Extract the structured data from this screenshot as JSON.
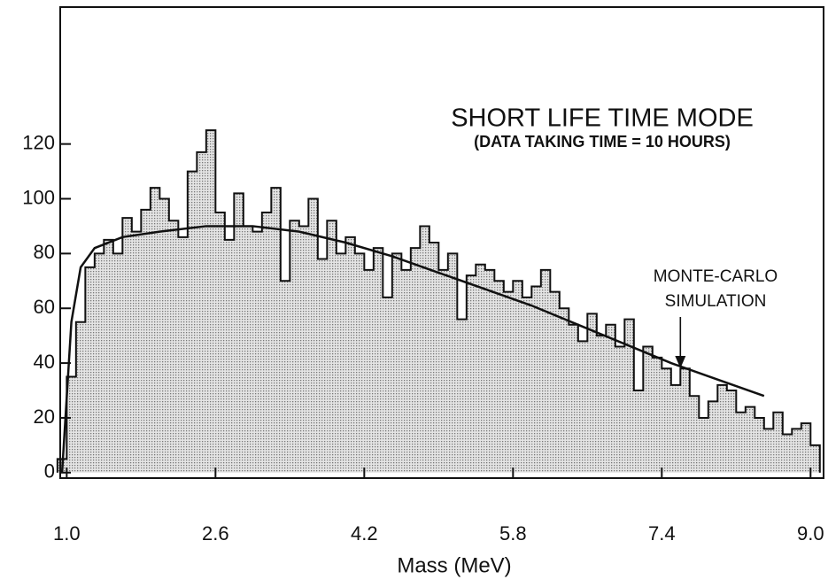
{
  "chart_data": {
    "type": "histogram",
    "title": "SHORT LIFE TIME MODE",
    "subtitle": "(DATA TAKING TIME = 10 HOURS)",
    "xlabel": "Mass (MeV)",
    "annotation": [
      "MONTE-CARLO",
      "SIMULATION"
    ],
    "color": "#b8b8b8",
    "bins": [
      0.9,
      1.0,
      1.1,
      1.2,
      1.3,
      1.4,
      1.5,
      1.6,
      1.7,
      1.8,
      1.9,
      2.0,
      2.1,
      2.2,
      2.3,
      2.4,
      2.5,
      2.6,
      2.7,
      2.8,
      2.9,
      3.0,
      3.1,
      3.2,
      3.3,
      3.4,
      3.5,
      3.6,
      3.7,
      3.8,
      3.9,
      4.0,
      4.1,
      4.2,
      4.3,
      4.4,
      4.5,
      4.6,
      4.7,
      4.8,
      4.9,
      5.0,
      5.1,
      5.2,
      5.3,
      5.4,
      5.5,
      5.6,
      5.7,
      5.8,
      5.9,
      6.0,
      6.1,
      6.2,
      6.3,
      6.4,
      6.5,
      6.6,
      6.7,
      6.8,
      6.9,
      7.0,
      7.1,
      7.2,
      7.3,
      7.4,
      7.5,
      7.6,
      7.7,
      7.8,
      7.9,
      8.0,
      8.1,
      8.2,
      8.3,
      8.4,
      8.5,
      8.6,
      8.7,
      8.8,
      8.9,
      9.0,
      9.1
    ],
    "values": [
      5,
      35,
      55,
      75,
      80,
      85,
      80,
      93,
      88,
      96,
      104,
      100,
      92,
      86,
      110,
      117,
      125,
      95,
      85,
      102,
      90,
      88,
      95,
      104,
      70,
      92,
      90,
      100,
      78,
      92,
      80,
      86,
      80,
      74,
      82,
      64,
      80,
      74,
      82,
      90,
      84,
      74,
      80,
      56,
      72,
      76,
      74,
      70,
      66,
      70,
      64,
      68,
      74,
      66,
      60,
      54,
      48,
      58,
      50,
      54,
      46,
      56,
      30,
      46,
      42,
      38,
      32,
      38,
      28,
      20,
      26,
      32,
      30,
      22,
      24,
      20,
      16,
      22,
      14,
      16,
      18,
      10
    ],
    "curve": {
      "color": "#111111",
      "x": [
        0.95,
        1.05,
        1.15,
        1.3,
        1.6,
        2.0,
        2.5,
        3.0,
        3.5,
        4.0,
        4.5,
        5.0,
        5.5,
        6.0,
        6.5,
        7.0,
        7.5,
        8.0,
        8.5
      ],
      "y": [
        0,
        55,
        75,
        82,
        86,
        88,
        90,
        90,
        88,
        84,
        79,
        73,
        67,
        61,
        54,
        47,
        40,
        34,
        28
      ]
    },
    "arrow_x": 7.6,
    "xlim": [
      0.93,
      9.14
    ],
    "ylim": [
      -2,
      170
    ],
    "xticks": [
      {
        "value": 1.0,
        "label": "1.0"
      },
      2.6,
      4.2,
      5.8,
      7.4,
      {
        "value": 9.0,
        "label": "9.0"
      }
    ],
    "yticks": [
      0,
      20,
      40,
      60,
      80,
      100,
      120
    ]
  }
}
